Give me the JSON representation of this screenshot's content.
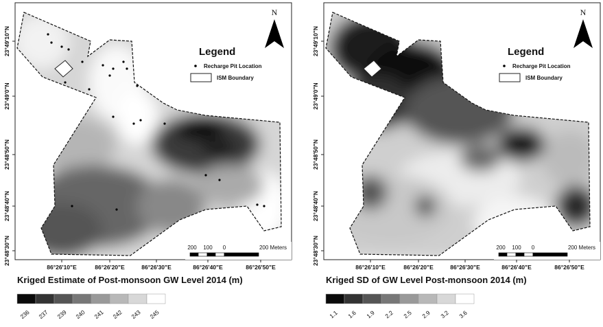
{
  "panels": [
    {
      "north": "N",
      "legend": {
        "title": "Legend",
        "items": [
          "Recharge Pit Location",
          "ISM Boundary"
        ]
      },
      "x_labels": [
        "86°26'10\"E",
        "86°26'20\"E",
        "86°26'30\"E",
        "86°26'40\"E",
        "86°26'50\"E"
      ],
      "y_labels": [
        "23°49'10\"N",
        "23°49'0\"N",
        "23°48'50\"N",
        "23°48'40\"N",
        "23°48'30\"N"
      ],
      "scale_labels": [
        "200",
        "100",
        "0",
        "200 Meters"
      ],
      "title": "Kriged Estimate of Post-monsoon GW Level  2014 (m)",
      "classes": {
        "labels": [
          236,
          237,
          239,
          240,
          241,
          242,
          243,
          245
        ],
        "colors": [
          "#0a0a0a",
          "#333333",
          "#555555",
          "#777777",
          "#999999",
          "#b8b8b8",
          "#d8d8d8",
          "#ffffff"
        ]
      }
    },
    {
      "north": "N",
      "legend": {
        "title": "Legend",
        "items": [
          "Recharge Pit Location",
          "ISM Boundary"
        ]
      },
      "x_labels": [
        "86°26'10\"E",
        "86°26'20\"E",
        "86°26'30\"E",
        "86°26'40\"E",
        "86°26'50\"E"
      ],
      "y_labels": [
        "23°49'10\"N",
        "23°49'0\"N",
        "23°48'50\"N",
        "23°48'40\"N",
        "23°48'30\"N"
      ],
      "scale_labels": [
        "200",
        "100",
        "0",
        "200 Meters"
      ],
      "title": "Kriged SD of GW Level Post-monsoon 2014 (m)",
      "classes": {
        "labels": [
          1.1,
          1.6,
          1.9,
          2.2,
          2.5,
          2.9,
          3.2,
          3.6
        ],
        "colors": [
          "#0a0a0a",
          "#333333",
          "#555555",
          "#777777",
          "#999999",
          "#b8b8b8",
          "#d8d8d8",
          "#ffffff"
        ]
      }
    }
  ]
}
